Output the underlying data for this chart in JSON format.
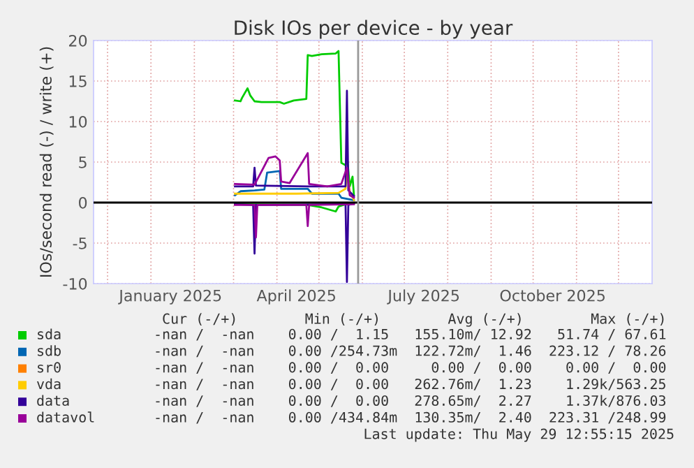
{
  "chart_data": {
    "type": "line",
    "title": "Disk IOs per device - by year",
    "ylabel": "IOs/second read (-) / write (+)",
    "xlim": [
      "2024-11-21",
      "2025-12-25"
    ],
    "ylim": [
      -10,
      20
    ],
    "yticks": [
      -10,
      -5,
      0,
      5,
      10,
      15,
      20
    ],
    "xticks": [
      {
        "value": "2024-12-01",
        "label": null
      },
      {
        "value": "2025-01-01",
        "label": null
      },
      {
        "value": "2025-01-15",
        "label": "January 2025"
      },
      {
        "value": "2025-02-01",
        "label": null
      },
      {
        "value": "2025-03-01",
        "label": null
      },
      {
        "value": "2025-04-01",
        "label": null
      },
      {
        "value": "2025-04-15",
        "label": "April 2025"
      },
      {
        "value": "2025-05-01",
        "label": null
      },
      {
        "value": "2025-06-01",
        "label": null
      },
      {
        "value": "2025-07-01",
        "label": null
      },
      {
        "value": "2025-07-15",
        "label": "July 2025"
      },
      {
        "value": "2025-08-01",
        "label": null
      },
      {
        "value": "2025-09-01",
        "label": null
      },
      {
        "value": "2025-10-01",
        "label": null
      },
      {
        "value": "2025-10-15",
        "label": "October 2025"
      },
      {
        "value": "2025-11-01",
        "label": null
      },
      {
        "value": "2025-12-01",
        "label": null
      }
    ],
    "grid": true,
    "legend": "bottom",
    "marker": "none",
    "line_style": "solid",
    "series": [
      {
        "name": "sda",
        "color": "#00cc00",
        "x": [
          "2025-03-02",
          "2025-03-06",
          "2025-03-07",
          "2025-03-09",
          "2025-03-11",
          "2025-03-13",
          "2025-03-16",
          "2025-03-21",
          "2025-04-03",
          "2025-04-06",
          "2025-04-13",
          "2025-04-22",
          "2025-04-23",
          "2025-04-26",
          "2025-05-03",
          "2025-05-13",
          "2025-05-15",
          "2025-05-17",
          "2025-05-20",
          "2025-05-21",
          "2025-05-23",
          "2025-05-25",
          "2025-05-26"
        ],
        "values": [
          12.6,
          12.5,
          12.9,
          13.5,
          14.1,
          13.2,
          12.5,
          12.4,
          12.4,
          12.2,
          12.6,
          12.8,
          18.2,
          18.1,
          18.3,
          18.4,
          18.7,
          4.9,
          4.6,
          6.0,
          2.0,
          3.2,
          0.9
        ]
      },
      {
        "name": "sdb",
        "color": "#0066b3",
        "x": [
          "2025-03-02",
          "2025-03-06",
          "2025-03-16",
          "2025-03-23",
          "2025-03-25",
          "2025-04-03",
          "2025-04-04",
          "2025-04-23",
          "2025-04-26",
          "2025-05-15",
          "2025-05-17",
          "2025-05-26"
        ],
        "values": [
          0.9,
          1.4,
          1.5,
          1.6,
          3.7,
          3.9,
          1.7,
          1.7,
          1.1,
          1.1,
          0.6,
          0.3
        ]
      },
      {
        "name": "sr0",
        "color": "#ff8000"
      },
      {
        "name": "vda",
        "color": "#ffcc00",
        "x": [
          "2025-03-02",
          "2025-04-15",
          "2025-05-15",
          "2025-05-20",
          "2025-05-21",
          "2025-05-23",
          "2025-05-26"
        ],
        "values": [
          1.1,
          1.1,
          1.2,
          1.7,
          3.7,
          1.4,
          0.3
        ]
      },
      {
        "name": "data",
        "color": "#330099",
        "x": [
          "2025-03-02",
          "2025-03-15",
          "2025-03-16",
          "2025-03-17",
          "2025-04-23",
          "2025-05-20",
          "2025-05-21",
          "2025-05-22",
          "2025-05-26"
        ],
        "values": [
          2.0,
          2.0,
          4.3,
          2.1,
          2.0,
          2.0,
          13.8,
          1.5,
          0.8
        ]
      },
      {
        "name": "datavol",
        "color": "#990099",
        "x": [
          "2025-03-02",
          "2025-03-16",
          "2025-03-26",
          "2025-03-31",
          "2025-04-03",
          "2025-04-04",
          "2025-04-10",
          "2025-04-23",
          "2025-04-24",
          "2025-05-07",
          "2025-05-17",
          "2025-05-21",
          "2025-05-23",
          "2025-05-26"
        ],
        "values": [
          2.3,
          2.2,
          5.5,
          5.7,
          5.2,
          2.6,
          2.4,
          6.1,
          2.3,
          2.0,
          2.3,
          4.3,
          0.9,
          0.6
        ]
      },
      {
        "color": "#00cc00",
        "x": [
          "2025-03-02",
          "2025-04-23",
          "2025-05-03",
          "2025-05-13",
          "2025-05-15",
          "2025-05-20",
          "2025-05-26"
        ],
        "values": [
          -0.2,
          -0.3,
          -0.6,
          -1.1,
          -0.5,
          -0.2,
          -0.1
        ]
      },
      {
        "color": "#330099",
        "x": [
          "2025-03-02",
          "2025-03-15",
          "2025-03-16",
          "2025-03-17",
          "2025-05-20",
          "2025-05-21",
          "2025-05-22",
          "2025-05-26"
        ],
        "values": [
          -0.2,
          -0.3,
          -6.3,
          -0.3,
          -0.2,
          -9.8,
          -0.3,
          -0.1
        ]
      },
      {
        "color": "#990099",
        "x": [
          "2025-03-02",
          "2025-03-16",
          "2025-03-17",
          "2025-03-18",
          "2025-04-22",
          "2025-04-23",
          "2025-04-24",
          "2025-05-26"
        ],
        "values": [
          -0.3,
          -0.3,
          -4.3,
          -0.3,
          -0.3,
          -2.9,
          -0.3,
          -0.2
        ]
      }
    ],
    "ref_lines": [
      {
        "axis": "y",
        "value": 0,
        "color": "#000000"
      },
      {
        "axis": "x",
        "value": "2025-05-29",
        "color": "#999999"
      }
    ],
    "annotations": [
      " Cur (-/+)        Min (-/+)        Avg (-/+)        Max (-/+)",
      "-nan /  -nan    0.00 /  1.15   155.10m/ 12.92   51.74 / 67.61",
      "-nan /  -nan    0.00 /254.73m  122.72m/  1.46  223.12 / 78.26",
      "-nan /  -nan    0.00 /  0.00     0.00 /  0.00    0.00 /  0.00",
      "-nan /  -nan    0.00 /  0.00   262.76m/  1.23    1.29k/563.25",
      "-nan /  -nan    0.00 /  0.00   278.65m/  2.27    1.37k/876.03",
      "-nan /  -nan    0.00 /434.84m  130.35m/  2.40  223.31 /248.99",
      "Last update: Thu May 29 12:55:15 2025"
    ]
  }
}
